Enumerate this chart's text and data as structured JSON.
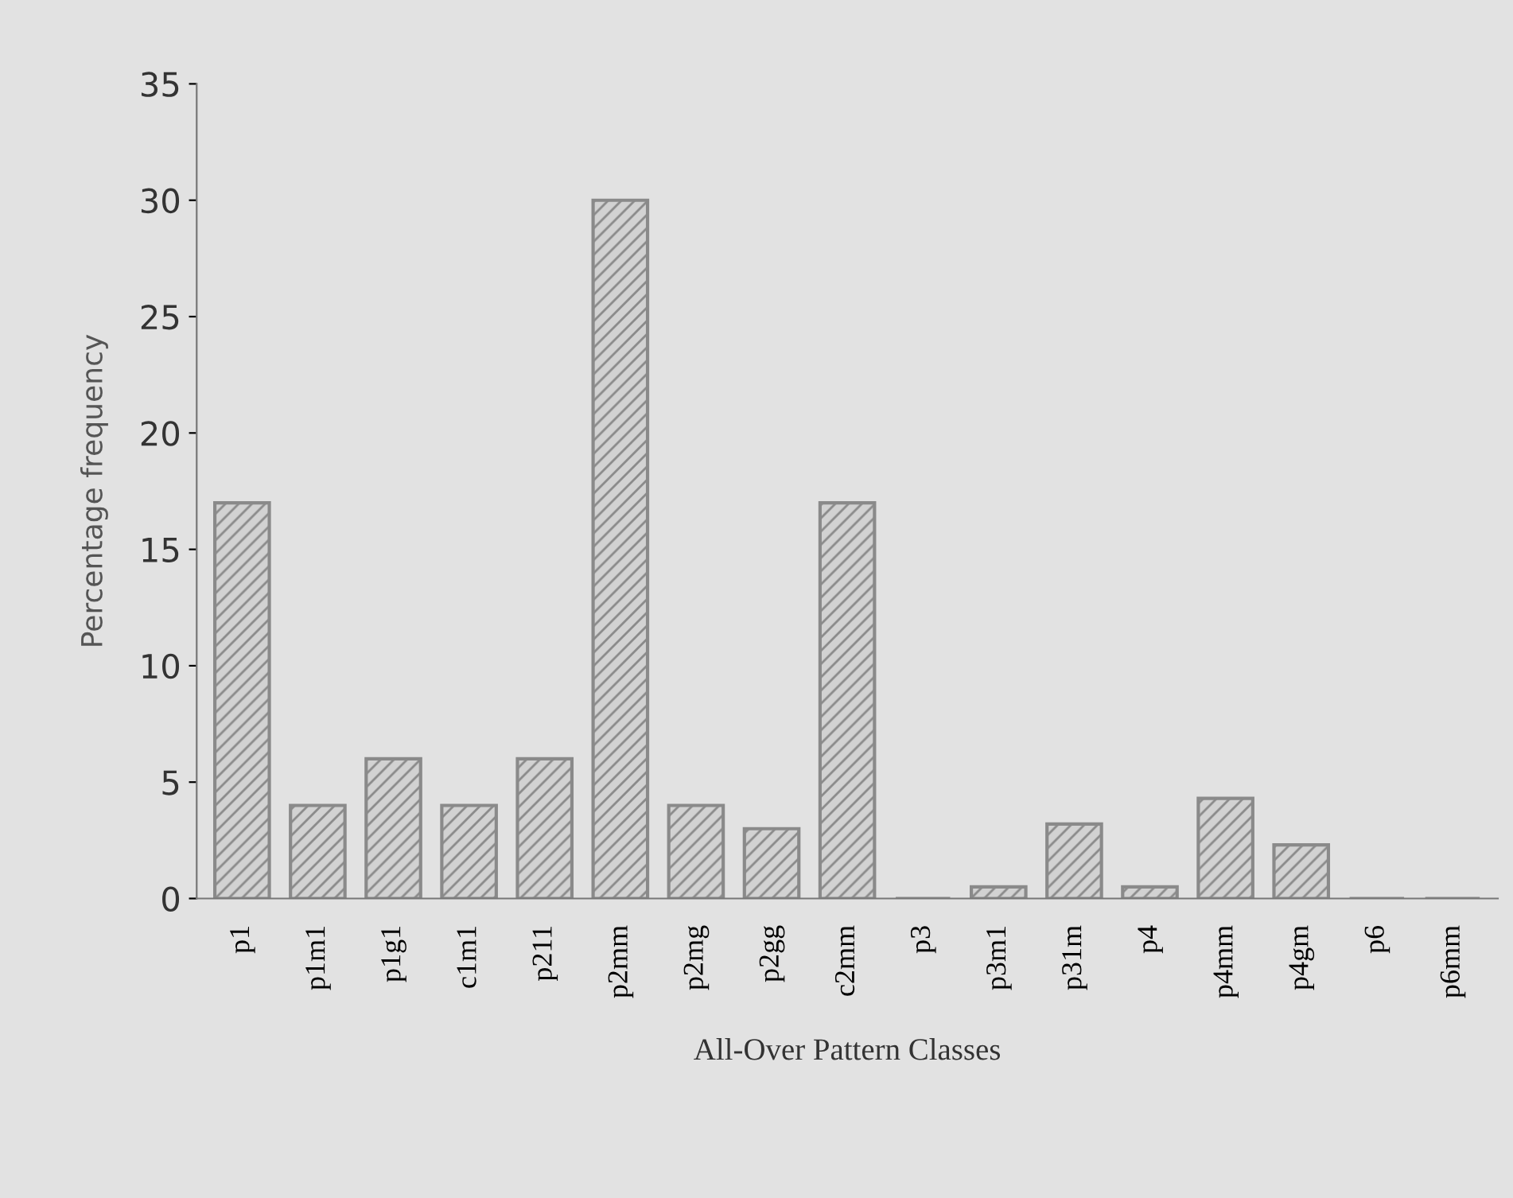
{
  "chart_data": {
    "type": "bar",
    "xlabel": "All-Over Pattern Classes",
    "ylabel": "Percentage frequency",
    "categories": [
      "p1",
      "p1m1",
      "p1g1",
      "c1m1",
      "p211",
      "p2mm",
      "p2mg",
      "p2gg",
      "c2mm",
      "p3",
      "p3m1",
      "p31m",
      "p4",
      "p4mm",
      "p4gm",
      "p6",
      "p6mm"
    ],
    "values": [
      17,
      4,
      6,
      4,
      6,
      30,
      4,
      3,
      17,
      0,
      0.5,
      3.2,
      0.5,
      4.3,
      2.3,
      0,
      0
    ],
    "color": "#8a8a8a",
    "ylim": [
      0,
      35
    ],
    "yticks": [
      0,
      5,
      10,
      15,
      20,
      25,
      30,
      35
    ],
    "grid": false
  }
}
